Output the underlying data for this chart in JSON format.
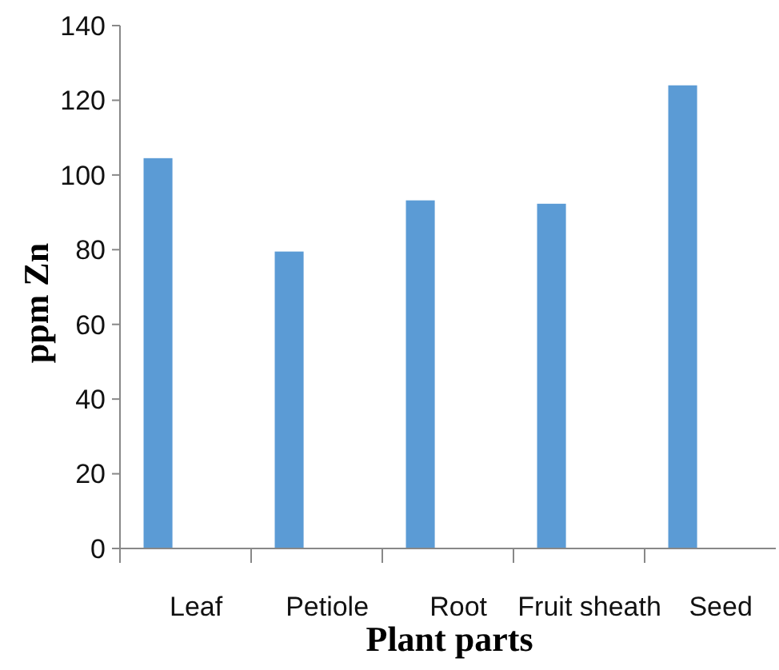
{
  "chart_data": {
    "type": "bar",
    "xlabel": "Plant parts",
    "ylabel": "ppm Zn",
    "categories": [
      "Leaf",
      "Petiole",
      "Root",
      "Fruit sheath",
      "Seed"
    ],
    "values": [
      104.5,
      79.5,
      93.2,
      92.3,
      124
    ],
    "color": "#5b9bd5",
    "ylim": [
      0,
      140
    ],
    "yticks": [
      0,
      20,
      40,
      60,
      80,
      100,
      120,
      140
    ],
    "grid": false
  }
}
